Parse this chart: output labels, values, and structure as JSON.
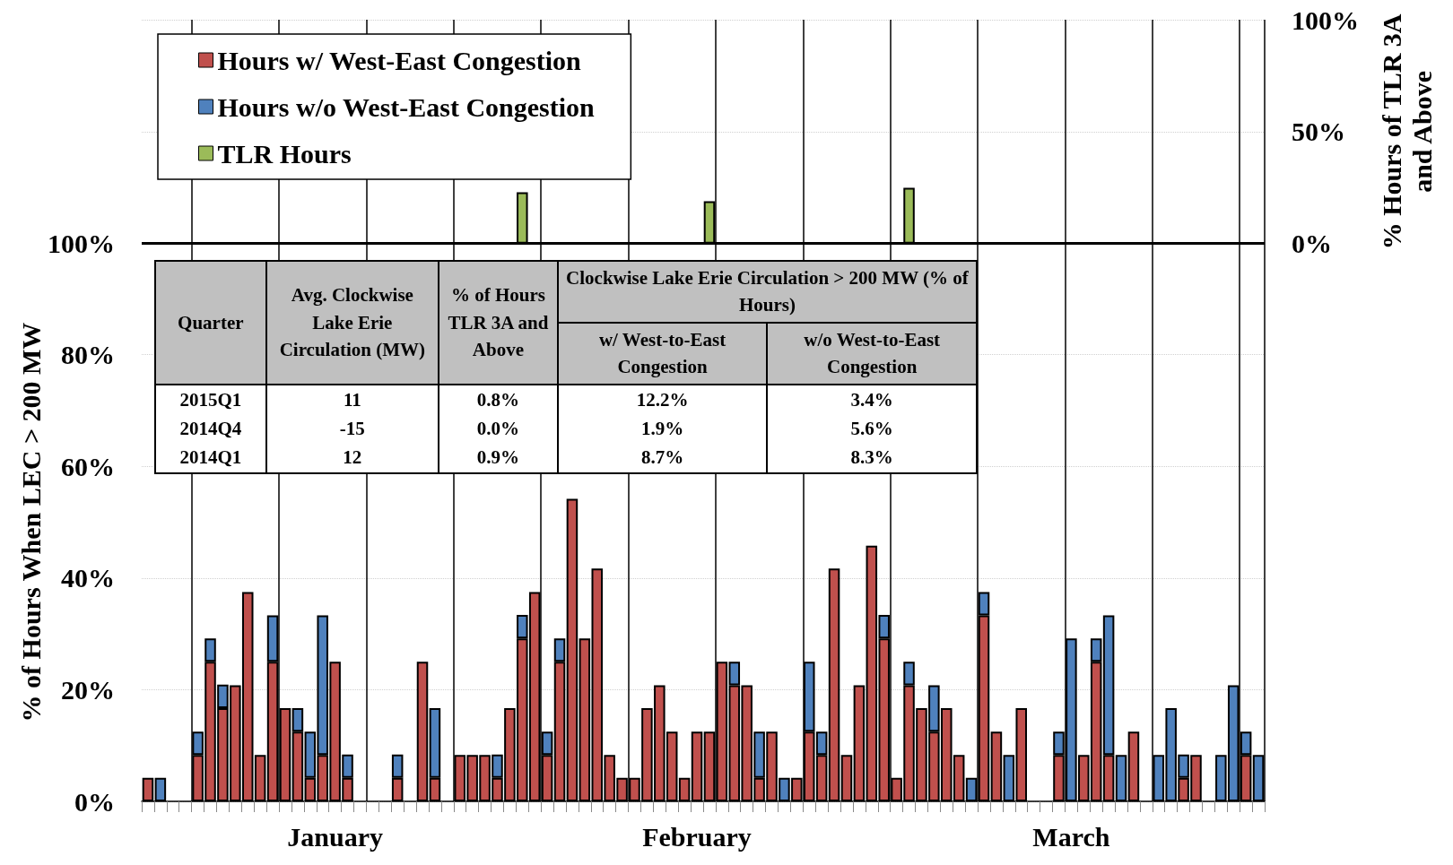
{
  "chart_data": [
    {
      "type": "bar",
      "stacked": true,
      "ylabel": "% of Hours When LEC > 200 MW",
      "y2label": "% Hours of TLR 3A and Above",
      "categories": [
        null,
        null,
        null,
        null,
        null,
        null,
        null,
        null,
        null,
        null,
        null,
        null,
        null,
        null,
        null,
        "January",
        null,
        null,
        null,
        null,
        null,
        null,
        null,
        null,
        null,
        null,
        null,
        null,
        null,
        null,
        null,
        null,
        null,
        null,
        null,
        null,
        null,
        null,
        null,
        null,
        null,
        null,
        null,
        null,
        "February",
        null,
        null,
        null,
        null,
        null,
        null,
        null,
        null,
        null,
        null,
        null,
        null,
        null,
        null,
        null,
        null,
        null,
        null,
        null,
        null,
        null,
        null,
        null,
        null,
        null,
        null,
        null,
        null,
        null,
        "March",
        null,
        null,
        null,
        null,
        null,
        null,
        null,
        null,
        null,
        null,
        null,
        null,
        null,
        null,
        null
      ],
      "ylim": [
        0,
        140
      ],
      "yticks": [
        {
          "value": 0,
          "label": "0%"
        },
        {
          "value": 20,
          "label": "20%"
        },
        {
          "value": 40,
          "label": "40%"
        },
        {
          "value": 60,
          "label": "60%"
        },
        {
          "value": 80,
          "label": "80%"
        },
        {
          "value": 100,
          "label": "100%"
        }
      ],
      "y2lim": [
        -249,
        100
      ],
      "y2ticks": [
        {
          "value": 0,
          "label": "0%"
        },
        {
          "value": 50,
          "label": "50%"
        },
        {
          "value": 100,
          "label": "100%"
        }
      ],
      "grid": true,
      "legend": "top left",
      "ref_lines": [
        {
          "axis": "y",
          "value": 100,
          "color": "#000000"
        }
      ],
      "series": [
        {
          "name": "Hours w/ West-East Congestion",
          "color": "#c0504d",
          "values": [
            4.2,
            0,
            0,
            0,
            8.3,
            25,
            16.7,
            20.8,
            37.5,
            8.3,
            25,
            16.7,
            12.5,
            4.2,
            8.3,
            25,
            4.2,
            0,
            0,
            0,
            4.2,
            0,
            25,
            4.2,
            0,
            8.3,
            8.3,
            8.3,
            4.2,
            16.7,
            29.2,
            37.5,
            8.3,
            25,
            54.2,
            29.2,
            41.7,
            8.3,
            4.2,
            4.2,
            16.7,
            20.8,
            12.5,
            4.2,
            12.5,
            12.5,
            25,
            20.8,
            20.8,
            4.2,
            12.5,
            0,
            4.2,
            12.5,
            8.3,
            41.7,
            8.3,
            20.8,
            45.8,
            29.2,
            4.2,
            20.8,
            16.7,
            12.5,
            16.7,
            8.3,
            0,
            33.3,
            12.5,
            0,
            16.7,
            0,
            0,
            8.3,
            0,
            8.3,
            25,
            8.3,
            0,
            12.5,
            0,
            0,
            0,
            4.2,
            8.3,
            0,
            0,
            0,
            8.3,
            0
          ]
        },
        {
          "name": "Hours w/o West-East Congestion",
          "color": "#4f81bd",
          "values": [
            0,
            4.2,
            0,
            0,
            4.2,
            4.2,
            4.2,
            0,
            0,
            0,
            8.3,
            0,
            4.2,
            8.3,
            25,
            0,
            4.2,
            0,
            0,
            0,
            4.2,
            0,
            0,
            12.5,
            0,
            0,
            0,
            0,
            4.2,
            0,
            4.2,
            0,
            4.2,
            4.2,
            0,
            0,
            0,
            0,
            0,
            0,
            0,
            0,
            0,
            0,
            0,
            0,
            0,
            4.2,
            0,
            8.3,
            0,
            4.2,
            0,
            12.5,
            4.2,
            0,
            0,
            0,
            0,
            4.2,
            0,
            4.2,
            0,
            8.3,
            0,
            0,
            4.2,
            4.2,
            0,
            8.3,
            0,
            0,
            0,
            4.2,
            29.2,
            0,
            4.2,
            25,
            8.3,
            0,
            0,
            8.3,
            16.7,
            4.2,
            0,
            0,
            8.3,
            20.8,
            4.2,
            8.3
          ]
        },
        {
          "name": "TLR Hours",
          "color": "#9bbb59",
          "axis": "y2",
          "values": [
            null,
            null,
            null,
            null,
            null,
            null,
            null,
            null,
            null,
            null,
            null,
            null,
            null,
            null,
            null,
            null,
            null,
            null,
            null,
            null,
            null,
            null,
            null,
            null,
            null,
            null,
            null,
            null,
            null,
            null,
            23,
            null,
            null,
            null,
            null,
            null,
            null,
            null,
            null,
            null,
            null,
            null,
            null,
            null,
            null,
            19,
            null,
            null,
            null,
            null,
            null,
            null,
            null,
            null,
            null,
            null,
            null,
            null,
            null,
            null,
            null,
            25,
            null,
            null,
            null,
            null,
            null,
            null,
            null,
            null,
            null,
            null,
            null,
            null,
            null,
            null,
            null,
            null,
            null,
            null,
            null,
            null,
            null,
            null,
            null,
            null,
            null,
            null,
            null,
            null
          ]
        }
      ]
    },
    {
      "type": "other",
      "annotations": [
        "Quarter",
        "Avg. Clockwise Lake Erie Circulation (MW)",
        "% of Hours TLR 3A and Above",
        "Clockwise Lake Erie Circulation > 200 MW (% of Hours)",
        "w/ West-to-East Congestion",
        "w/o West-to-East Congestion",
        "2015Q1",
        "11",
        "0.8%",
        "12.2%",
        "3.4%",
        "2014Q4",
        "-15",
        "0.0%",
        "1.9%",
        "5.6%",
        "2014Q1",
        "12",
        "0.9%",
        "8.7%",
        "8.3%"
      ]
    }
  ]
}
